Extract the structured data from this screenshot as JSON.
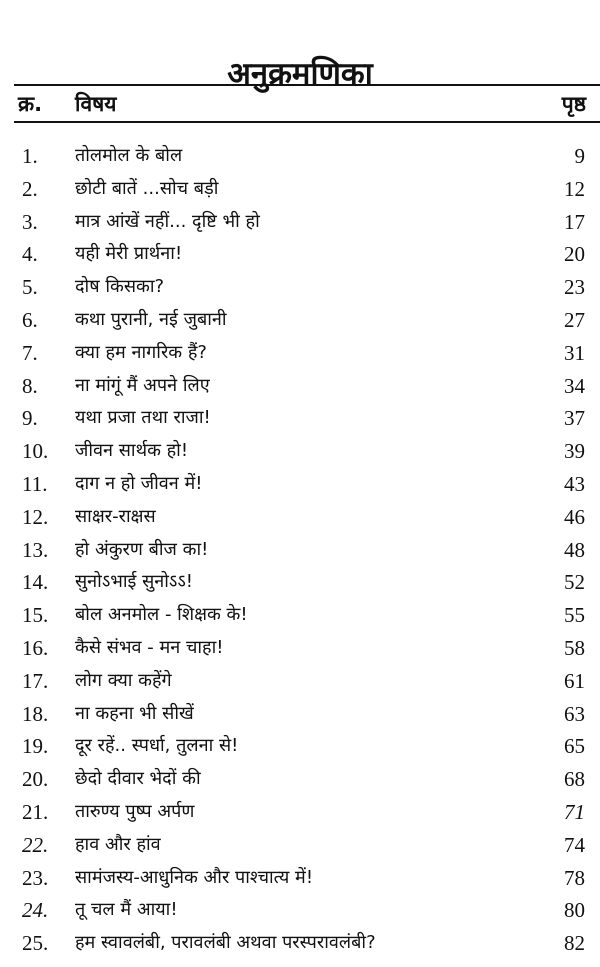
{
  "title": "अनुक्रमणिका",
  "header": {
    "number": "क्र.",
    "subject": "विषय",
    "page": "पृष्ठ"
  },
  "entries": [
    {
      "num": "1.",
      "title": "तोलमोल के बोल",
      "page": "9"
    },
    {
      "num": "2.",
      "title": "छोटी बातें ...सोच बड़ी",
      "page": "12"
    },
    {
      "num": "3.",
      "title": "मात्र आंखें नहीं... दृष्टि भी हो",
      "page": "17"
    },
    {
      "num": "4.",
      "title": "यही मेरी प्रार्थना!",
      "page": "20"
    },
    {
      "num": "5.",
      "title": "दोष किसका?",
      "page": "23"
    },
    {
      "num": "6.",
      "title": "कथा पुरानी, नई जुबानी",
      "page": "27"
    },
    {
      "num": "7.",
      "title": "क्या हम नागरिक हैं?",
      "page": "31"
    },
    {
      "num": "8.",
      "title": "ना मांगूं मैं अपने लिए",
      "page": "34"
    },
    {
      "num": "9.",
      "title": "यथा प्रजा तथा राजा!",
      "page": "37"
    },
    {
      "num": "10.",
      "title": "जीवन सार्थक हो!",
      "page": "39"
    },
    {
      "num": "11.",
      "title": "दाग न हो जीवन में!",
      "page": "43"
    },
    {
      "num": "12.",
      "title": "साक्षर-राक्षस",
      "page": "46"
    },
    {
      "num": "13.",
      "title": "हो अंकुरण बीज का!",
      "page": "48"
    },
    {
      "num": "14.",
      "title": "सुनोऽभाई सुनोऽऽ!",
      "page": "52"
    },
    {
      "num": "15.",
      "title": "बोल अनमोल - शिक्षक के!",
      "page": "55"
    },
    {
      "num": "16.",
      "title": "कैसे संभव - मन चाहा!",
      "page": "58"
    },
    {
      "num": "17.",
      "title": "लोग क्या कहेंगे",
      "page": "61"
    },
    {
      "num": "18.",
      "title": "ना कहना भी सीखें",
      "page": "63"
    },
    {
      "num": "19.",
      "title": "दूर रहें.. स्पर्धा, तुलना से!",
      "page": "65"
    },
    {
      "num": "20.",
      "title": "छेदो दीवार भेदों की",
      "page": "68"
    },
    {
      "num": "21.",
      "title": "तारुण्य पुष्प अर्पण",
      "page": "71"
    },
    {
      "num": "22.",
      "title": "हाव और हांव",
      "page": "74"
    },
    {
      "num": "23.",
      "title": "सामंजस्य-आधुनिक और पाश्चात्य में!",
      "page": "78"
    },
    {
      "num": "24.",
      "title": "तू चल मैं आया!",
      "page": "80"
    },
    {
      "num": "25.",
      "title": "हम स्वावलंबी, परावलंबी अथवा परस्परावलंबी?",
      "page": "82"
    }
  ]
}
